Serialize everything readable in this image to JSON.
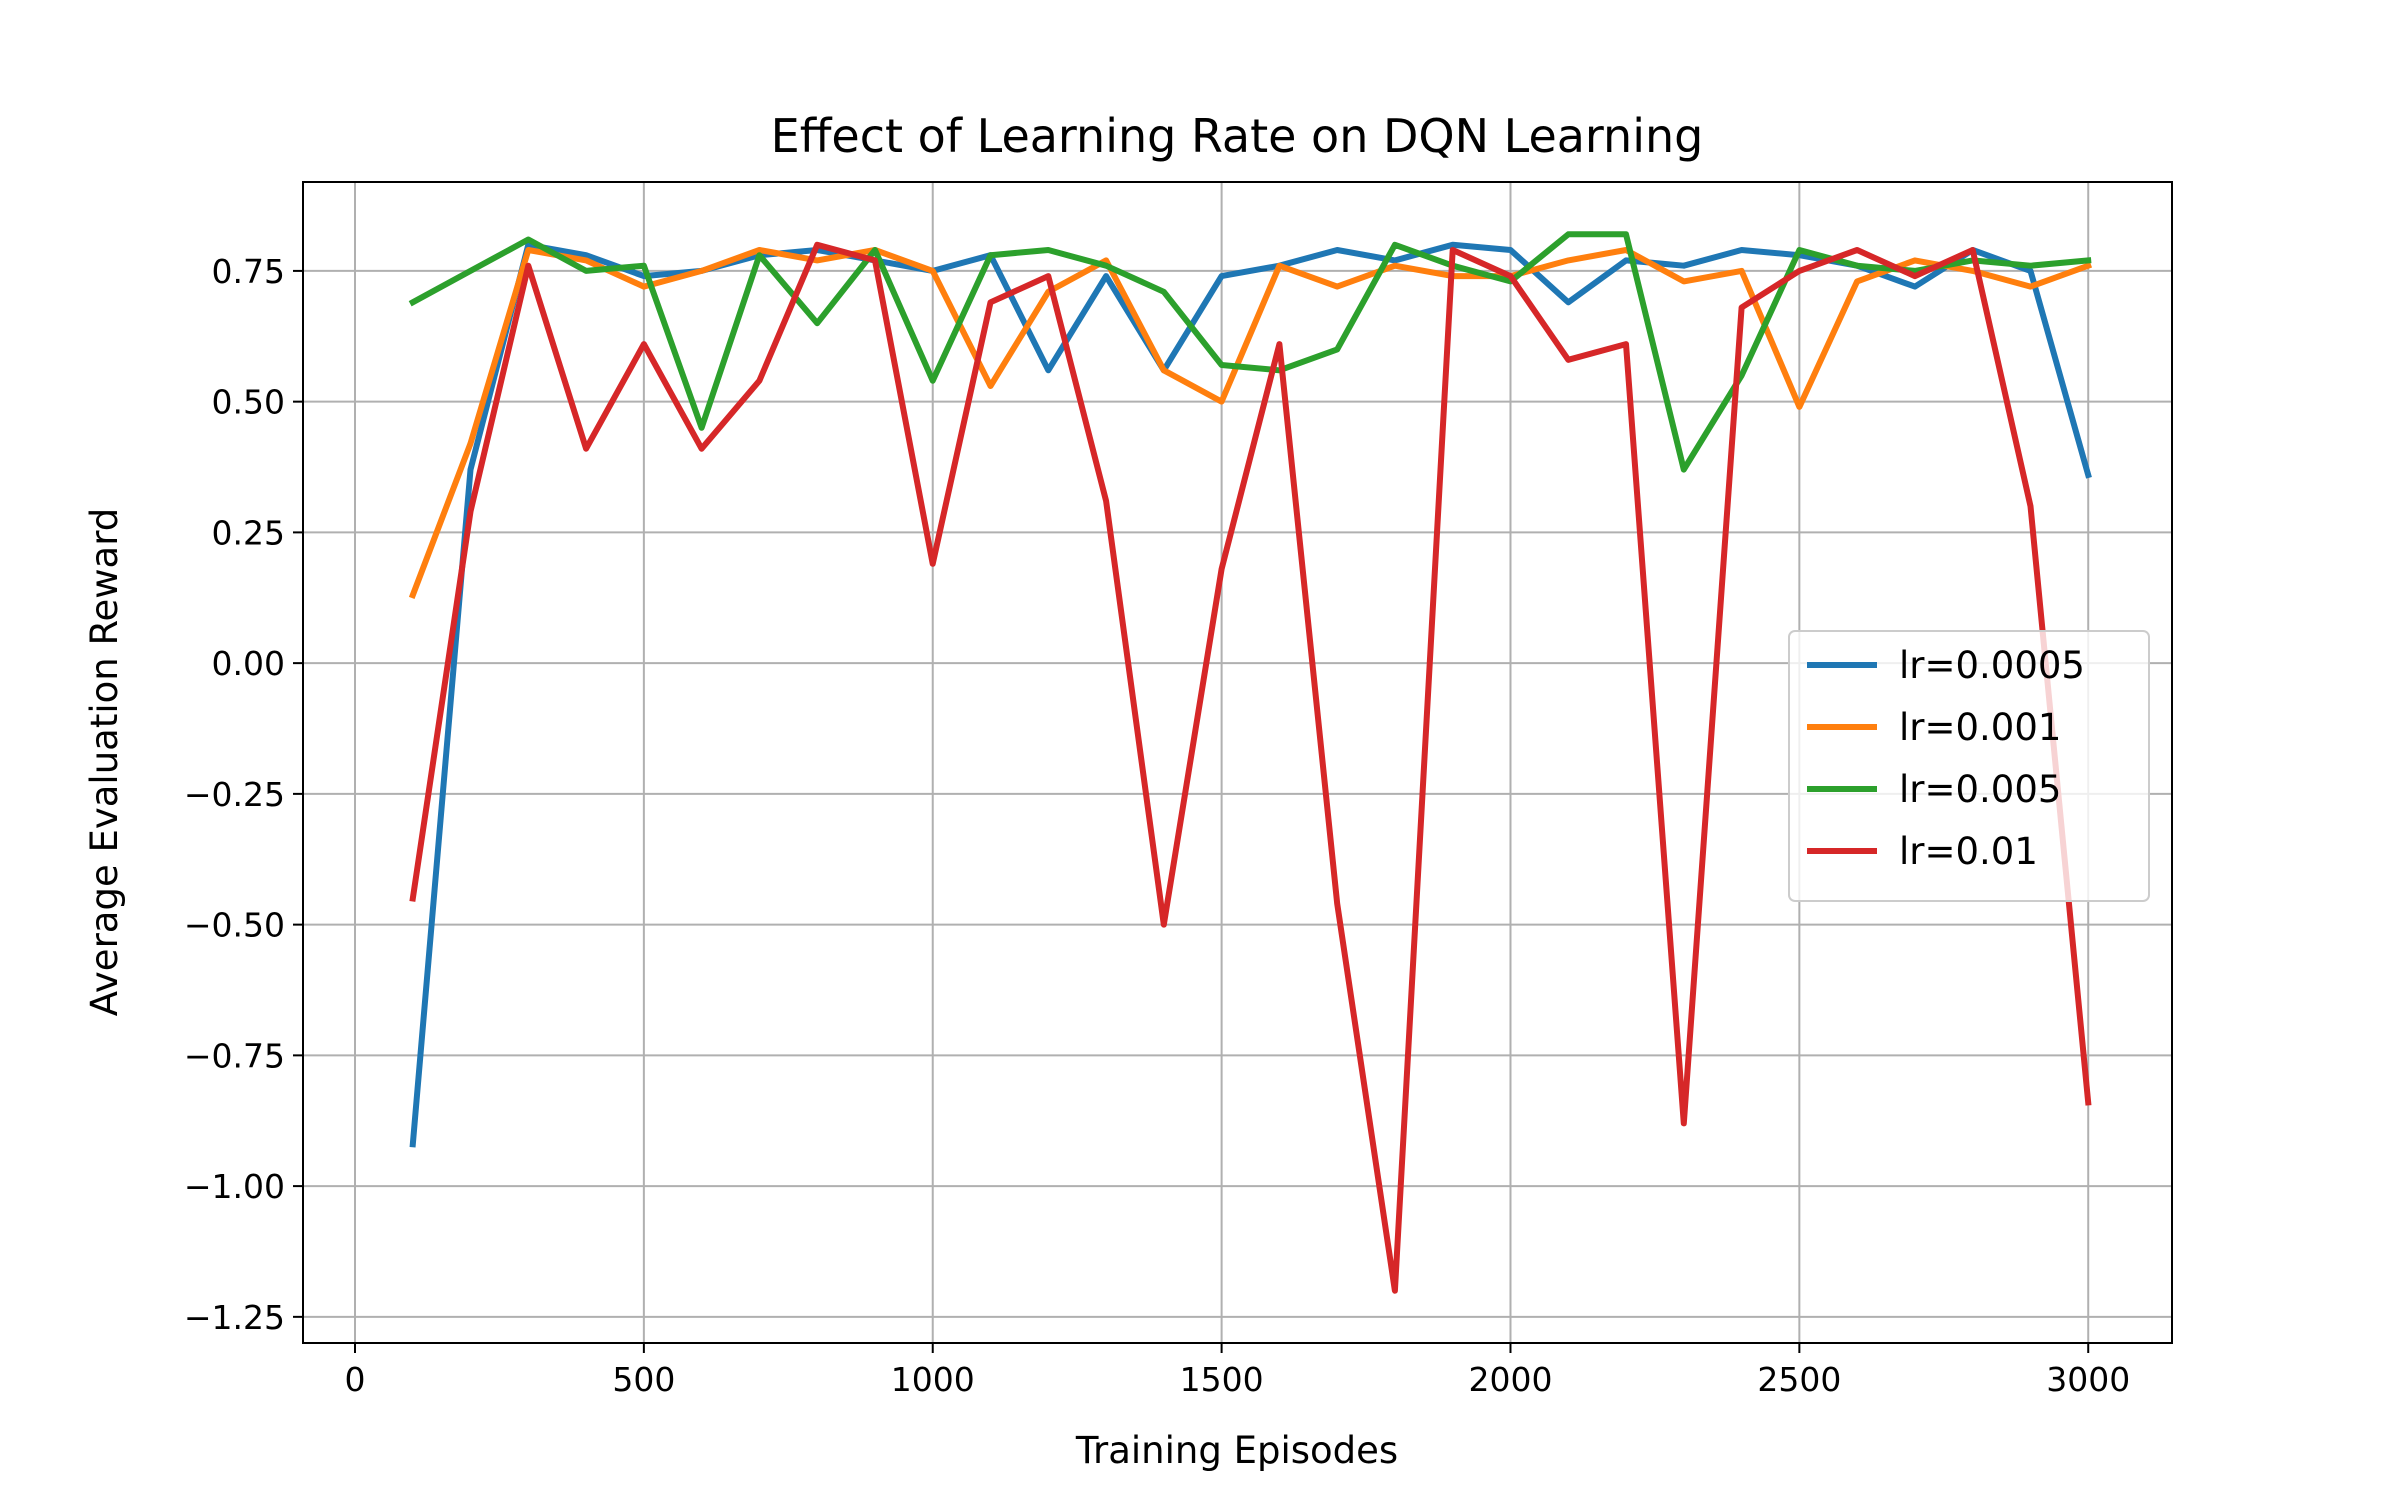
{
  "chart_data": {
    "type": "line",
    "title": "Effect of Learning Rate on DQN Learning",
    "xlabel": "Training Episodes",
    "ylabel": "Average Evaluation Reward",
    "xlim": [
      -90,
      3145
    ],
    "ylim": [
      -1.3,
      0.92
    ],
    "xticks": [
      0,
      500,
      1000,
      1500,
      2000,
      2500,
      3000
    ],
    "xtick_labels": [
      "0",
      "500",
      "1000",
      "1500",
      "2000",
      "2500",
      "3000"
    ],
    "yticks": [
      0.75,
      0.5,
      0.25,
      0.0,
      -0.25,
      -0.5,
      -0.75,
      -1.0,
      -1.25
    ],
    "ytick_labels": [
      "0.75",
      "0.50",
      "0.25",
      "0.00",
      "−0.25",
      "−0.50",
      "−0.75",
      "−1.00",
      "−1.25"
    ],
    "grid": true,
    "legend_position": "center-right",
    "x": [
      100,
      200,
      300,
      400,
      500,
      600,
      700,
      800,
      900,
      1000,
      1100,
      1200,
      1300,
      1400,
      1500,
      1600,
      1700,
      1800,
      1900,
      2000,
      2100,
      2200,
      2300,
      2400,
      2500,
      2600,
      2700,
      2800,
      2900,
      3000
    ],
    "series": [
      {
        "name": "lr=0.0005",
        "color": "#1f77b4",
        "values": [
          -0.92,
          0.37,
          0.8,
          0.78,
          0.74,
          0.75,
          0.78,
          0.79,
          0.77,
          0.75,
          0.78,
          0.56,
          0.74,
          0.56,
          0.74,
          0.76,
          0.79,
          0.77,
          0.8,
          0.79,
          0.69,
          0.77,
          0.76,
          0.79,
          0.78,
          0.76,
          0.72,
          0.79,
          0.75,
          0.36
        ]
      },
      {
        "name": "lr=0.001",
        "color": "#ff7f0e",
        "values": [
          0.13,
          0.42,
          0.79,
          0.77,
          0.72,
          0.75,
          0.79,
          0.77,
          0.79,
          0.75,
          0.53,
          0.71,
          0.77,
          0.56,
          0.5,
          0.76,
          0.72,
          0.76,
          0.74,
          0.74,
          0.77,
          0.79,
          0.73,
          0.75,
          0.49,
          0.73,
          0.77,
          0.75,
          0.72,
          0.76
        ]
      },
      {
        "name": "lr=0.005",
        "color": "#2ca02c",
        "values": [
          0.69,
          0.75,
          0.81,
          0.75,
          0.76,
          0.45,
          0.78,
          0.65,
          0.79,
          0.54,
          0.78,
          0.79,
          0.76,
          0.71,
          0.57,
          0.56,
          0.6,
          0.8,
          0.76,
          0.73,
          0.82,
          0.82,
          0.37,
          0.55,
          0.79,
          0.76,
          0.75,
          0.77,
          0.76,
          0.77
        ]
      },
      {
        "name": "lr=0.01",
        "color": "#d62728",
        "values": [
          -0.45,
          0.29,
          0.76,
          0.41,
          0.61,
          0.41,
          0.54,
          0.8,
          0.77,
          0.19,
          0.69,
          0.74,
          0.31,
          -0.5,
          0.18,
          0.61,
          -0.46,
          -1.2,
          0.79,
          0.74,
          0.58,
          0.61,
          -0.88,
          0.68,
          0.75,
          0.79,
          0.74,
          0.79,
          0.3,
          -0.84
        ]
      }
    ]
  }
}
